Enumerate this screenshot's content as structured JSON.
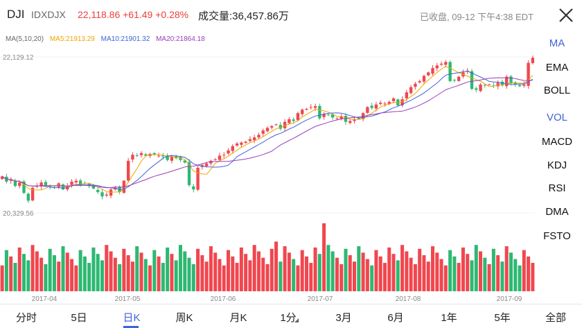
{
  "header": {
    "symbol": "DJI",
    "code": "IDXDJX",
    "price_change": "22,118.86  +61.49  +0.28%",
    "volume": "成交量:36,457.86万",
    "status": "已收盘, 09-12 下午4:38 EDT",
    "close_icon": "close-icon"
  },
  "ma_legend": {
    "ma": "MA(5,10,20)",
    "ma5": "MA5:21913.29",
    "ma10": "MA10:21901.32",
    "ma20": "MA20:21864.18"
  },
  "side_menu": {
    "ma": "MA",
    "ema": "EMA",
    "boll": "BOLL",
    "vol": "VOL",
    "macd": "MACD",
    "kdj": "KDJ",
    "rsi": "RSI",
    "dma": "DMA",
    "fsto": "FSTO"
  },
  "tabs": [
    "分时",
    "5日",
    "日K",
    "周K",
    "月K",
    "1分",
    "3月",
    "6月",
    "1年",
    "5年",
    "全部"
  ],
  "active_tab": "日K",
  "colors": {
    "up": "#f0474f",
    "down": "#2eb872",
    "ma5": "#f0a400",
    "ma10": "#3f62d8",
    "ma20": "#9a3db8",
    "accent": "#3f62d8"
  },
  "chart_data": {
    "type": "candlestick",
    "y_max_label": "22,129.12",
    "y_min_label": "20,329.56",
    "ylim": [
      20329.56,
      22129.12
    ],
    "x_tick_labels": [
      "2017-04",
      "2017-05",
      "2017-06",
      "2017-07",
      "2017-08",
      "2017-09"
    ],
    "close": [
      20750,
      20690,
      20710,
      20640,
      20680,
      20560,
      20470,
      20620,
      20640,
      20680,
      20650,
      20630,
      20620,
      20670,
      20600,
      20640,
      20690,
      20700,
      20660,
      20670,
      20640,
      20610,
      20570,
      20520,
      20540,
      20600,
      20620,
      20570,
      20700,
      20930,
      21000,
      20990,
      21020,
      20990,
      21010,
      21000,
      20990,
      20980,
      20940,
      20980,
      20960,
      20940,
      20910,
      20650,
      20600,
      20850,
      20880,
      20900,
      20930,
      20950,
      20990,
      21000,
      21050,
      21100,
      21130,
      21140,
      21150,
      21180,
      21200,
      21230,
      21280,
      21310,
      21330,
      21350,
      21300,
      21380,
      21410,
      21390,
      21480,
      21520,
      21530,
      21550,
      21560,
      21420,
      21470,
      21460,
      21430,
      21420,
      21440,
      21380,
      21390,
      21410,
      21420,
      21480,
      21550,
      21540,
      21580,
      21600,
      21590,
      21610,
      21650,
      21570,
      21640,
      21720,
      21780,
      21820,
      21850,
      21910,
      21950,
      22000,
      22030,
      22050,
      22070,
      21850,
      21860,
      21900,
      21950,
      21970,
      21760,
      21750,
      21810,
      21800,
      21810,
      21790,
      21830,
      21800,
      21900,
      21820,
      21810,
      21790,
      21810,
      22060,
      22118.86
    ],
    "ma5_last": 21913.29,
    "ma10_last": 21901.32,
    "ma20_last": 21864.18
  }
}
